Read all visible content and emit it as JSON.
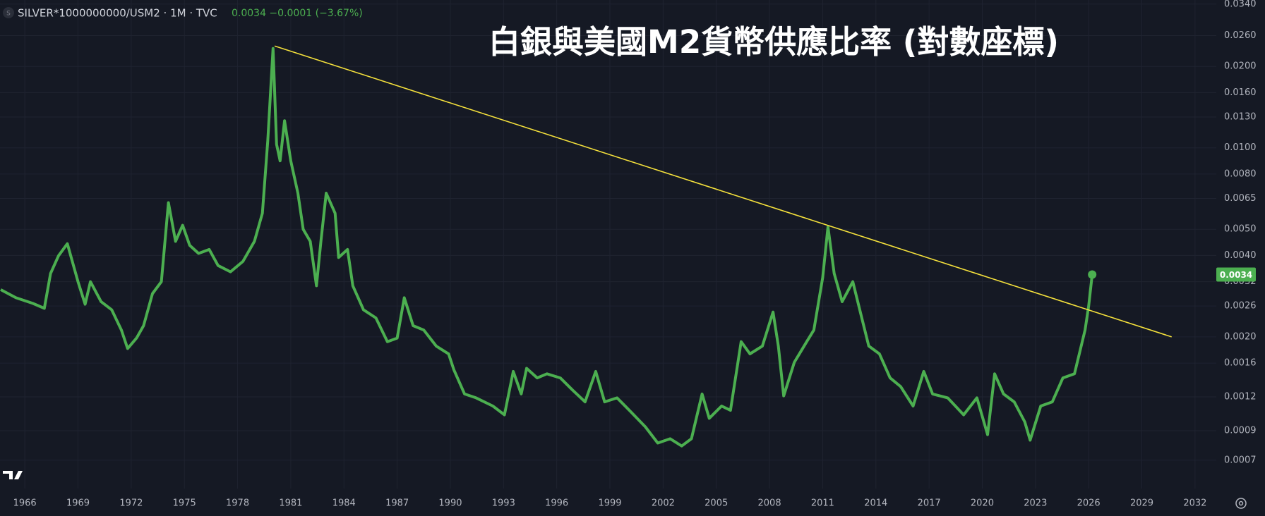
{
  "chart_data": {
    "type": "line",
    "title": "白銀與美國M2貨幣供應比率 (對數座標)",
    "symbol_icon": "S",
    "symbol": "SILVER*1000000000/USM2 · 1M · TVC",
    "quote": "0.0034 −0.0001 (−3.67%)",
    "log_y": true,
    "grid": true,
    "xlim": [
      1964.6,
      2033.2
    ],
    "xticks": [
      1966,
      1969,
      1972,
      1975,
      1978,
      1981,
      1984,
      1987,
      1990,
      1993,
      1996,
      1999,
      2002,
      2005,
      2008,
      2011,
      2014,
      2017,
      2020,
      2023,
      2026,
      2029,
      2032
    ],
    "ylim": [
      0.00055,
      0.0352
    ],
    "yticks": [
      {
        "value": 0.034,
        "label": "0.0340"
      },
      {
        "value": 0.026,
        "label": "0.0260"
      },
      {
        "value": 0.02,
        "label": "0.0200"
      },
      {
        "value": 0.016,
        "label": "0.0160"
      },
      {
        "value": 0.013,
        "label": "0.0130"
      },
      {
        "value": 0.01,
        "label": "0.0100"
      },
      {
        "value": 0.008,
        "label": "0.0080"
      },
      {
        "value": 0.0065,
        "label": "0.0065"
      },
      {
        "value": 0.005,
        "label": "0.0050"
      },
      {
        "value": 0.004,
        "label": "0.0040"
      },
      {
        "value": 0.0032,
        "label": "0.0032"
      },
      {
        "value": 0.0026,
        "label": "0.0026"
      },
      {
        "value": 0.002,
        "label": "0.0020"
      },
      {
        "value": 0.0016,
        "label": "0.0016"
      },
      {
        "value": 0.0012,
        "label": "0.0012"
      },
      {
        "value": 0.0009,
        "label": "0.0009"
      },
      {
        "value": 0.0007,
        "label": "0.0007"
      }
    ],
    "x": [
      1964.64,
      1965.5,
      1966.45,
      1967.1,
      1967.45,
      1967.9,
      1968.4,
      1969.0,
      1969.4,
      1969.7,
      1970.3,
      1970.9,
      1971.45,
      1971.8,
      1972.3,
      1972.7,
      1973.2,
      1973.7,
      1974.1,
      1974.5,
      1974.9,
      1975.3,
      1975.8,
      1976.4,
      1976.9,
      1977.6,
      1978.3,
      1978.95,
      1979.4,
      1979.7,
      1980.0,
      1980.2,
      1980.4,
      1980.65,
      1981.0,
      1981.4,
      1981.7,
      1982.1,
      1982.45,
      1982.7,
      1983.0,
      1983.5,
      1983.7,
      1984.2,
      1984.5,
      1985.1,
      1985.8,
      1986.45,
      1987.0,
      1987.4,
      1987.9,
      1988.5,
      1989.2,
      1989.9,
      1990.2,
      1990.8,
      1991.45,
      1992.4,
      1993.05,
      1993.55,
      1994.0,
      1994.3,
      1994.9,
      1995.45,
      1996.2,
      1996.9,
      1997.6,
      1998.2,
      1998.7,
      1999.4,
      2000.1,
      2001.0,
      2001.7,
      2002.4,
      2003.05,
      2003.6,
      2004.2,
      2004.6,
      2005.3,
      2005.8,
      2006.4,
      2006.9,
      2007.6,
      2008.2,
      2008.5,
      2008.8,
      2009.4,
      2010.1,
      2010.5,
      2011.0,
      2011.3,
      2011.65,
      2012.1,
      2012.7,
      2013.15,
      2013.6,
      2014.2,
      2014.8,
      2015.4,
      2016.1,
      2016.7,
      2017.2,
      2018.05,
      2018.95,
      2019.7,
      2020.3,
      2020.7,
      2021.2,
      2021.8,
      2022.4,
      2022.7,
      2023.3,
      2023.95,
      2024.55,
      2025.2,
      2025.8,
      2026.0,
      2026.2
    ],
    "series": [
      {
        "name": "SILVER*1000000000/USM2",
        "color": "#4caf50",
        "values": [
          0.00299,
          0.00279,
          0.00266,
          0.00255,
          0.00343,
          0.00399,
          0.00442,
          0.0032,
          0.00264,
          0.0032,
          0.0027,
          0.00252,
          0.00212,
          0.00181,
          0.00198,
          0.0022,
          0.00289,
          0.0032,
          0.00627,
          0.00451,
          0.00517,
          0.00436,
          0.00407,
          0.00421,
          0.00367,
          0.00348,
          0.0038,
          0.00451,
          0.00573,
          0.0106,
          0.0233,
          0.0103,
          0.00895,
          0.0126,
          0.00895,
          0.0068,
          0.005,
          0.00451,
          0.00309,
          0.00451,
          0.0068,
          0.00573,
          0.00393,
          0.00421,
          0.00309,
          0.00252,
          0.00235,
          0.00192,
          0.00198,
          0.00279,
          0.0022,
          0.00212,
          0.00185,
          0.00173,
          0.00151,
          0.00123,
          0.00119,
          0.00111,
          0.00103,
          0.00149,
          0.00123,
          0.00153,
          0.00141,
          0.00146,
          0.00141,
          0.00127,
          0.00115,
          0.00149,
          0.00115,
          0.00119,
          0.00107,
          0.00093,
          0.00081,
          0.00084,
          0.00079,
          0.00084,
          0.00123,
          0.001,
          0.00111,
          0.00107,
          0.00192,
          0.00173,
          0.00185,
          0.00247,
          0.00185,
          0.00121,
          0.00161,
          0.00192,
          0.00212,
          0.00331,
          0.0051,
          0.00343,
          0.0027,
          0.0032,
          0.00243,
          0.00185,
          0.00173,
          0.00141,
          0.00131,
          0.00111,
          0.00149,
          0.00123,
          0.00119,
          0.00103,
          0.00119,
          0.00087,
          0.00146,
          0.00123,
          0.00115,
          0.00097,
          0.00083,
          0.00111,
          0.00115,
          0.00141,
          0.00146,
          0.00212,
          0.0026,
          0.0034
        ]
      }
    ],
    "trendline": {
      "color": "#f5e13c",
      "x": [
        1980.09,
        2030.68
      ],
      "values": [
        0.0238,
        0.002
      ]
    }
  }
}
